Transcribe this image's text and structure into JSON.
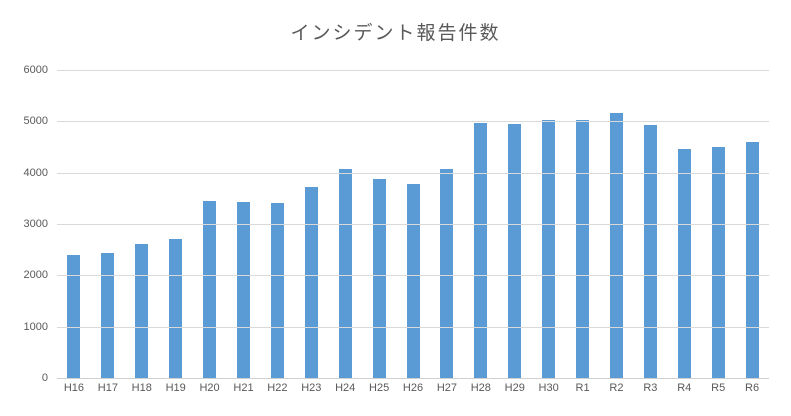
{
  "chart_data": {
    "type": "bar",
    "title": "インシデント報告件数",
    "categories": [
      "H16",
      "H17",
      "H18",
      "H19",
      "H20",
      "H21",
      "H22",
      "H23",
      "H24",
      "H25",
      "H26",
      "H27",
      "H28",
      "H29",
      "H30",
      "R1",
      "R2",
      "R3",
      "R4",
      "R5",
      "R6"
    ],
    "values": [
      2400,
      2430,
      2620,
      2700,
      3440,
      3420,
      3410,
      3730,
      4080,
      3870,
      3780,
      4080,
      4970,
      4950,
      5030,
      5020,
      5170,
      4920,
      4470,
      4510,
      4600
    ],
    "xlabel": "",
    "ylabel": "",
    "ylim": [
      0,
      6000
    ],
    "y_ticks": [
      0,
      1000,
      2000,
      3000,
      4000,
      5000,
      6000
    ],
    "grid": true,
    "legend": "none",
    "colors": {
      "bar": "#5b9bd5",
      "gridline": "#d9d9d9",
      "axis_text": "#595959",
      "title_text": "#595959",
      "background": "#ffffff"
    }
  }
}
